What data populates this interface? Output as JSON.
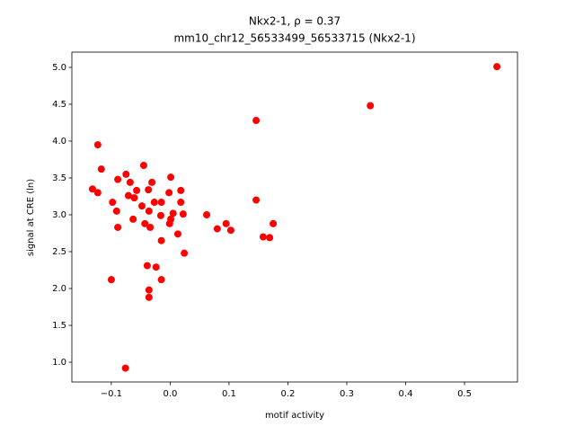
{
  "chart_data": {
    "type": "scatter",
    "title": "Nkx2-1, ρ = 0.37",
    "subtitle": "mm10_chr12_56533499_56533715 (Nkx2-1)",
    "x_label": "motif activity",
    "y_label": "signal at CRE (ln)",
    "color": "#ff0000",
    "x": [
      0.555,
      0.34,
      0.146,
      -0.123,
      -0.117,
      -0.045,
      -0.132,
      -0.123,
      -0.089,
      -0.075,
      -0.068,
      -0.031,
      0.001,
      -0.057,
      -0.037,
      -0.071,
      -0.061,
      -0.098,
      -0.027,
      -0.015,
      0.018,
      0.018,
      -0.002,
      -0.048,
      -0.091,
      -0.036,
      -0.016,
      0.005,
      0.022,
      0.062,
      -0.063,
      0.001,
      -0.001,
      -0.043,
      -0.089,
      -0.034,
      0.095,
      0.08,
      0.103,
      0.146,
      0.175,
      0.158,
      0.169,
      0.013,
      -0.015,
      0.024,
      -0.039,
      -0.024,
      -0.1,
      -0.015,
      -0.036,
      -0.036,
      -0.076
    ],
    "values": [
      5.01,
      4.48,
      4.28,
      3.95,
      3.62,
      3.67,
      3.35,
      3.3,
      3.48,
      3.55,
      3.44,
      3.44,
      3.51,
      3.33,
      3.34,
      3.26,
      3.23,
      3.17,
      3.17,
      3.17,
      3.17,
      3.33,
      3.3,
      3.12,
      3.05,
      3.05,
      2.99,
      3.02,
      3.01,
      3.0,
      2.94,
      2.94,
      2.88,
      2.88,
      2.83,
      2.83,
      2.88,
      2.81,
      2.79,
      3.2,
      2.88,
      2.7,
      2.69,
      2.74,
      2.65,
      2.48,
      2.31,
      2.29,
      2.12,
      2.12,
      1.98,
      1.88,
      0.92
    ],
    "xlim": [
      -0.167,
      0.59
    ],
    "ylim": [
      0.732,
      5.207
    ],
    "xticks": [
      {
        "value": -0.1,
        "label": "−0.1"
      },
      {
        "value": 0,
        "label": "0.0"
      },
      0.1,
      0.2,
      0.3,
      0.4,
      0.5
    ],
    "yticks": [
      {
        "value": 1,
        "label": "1.0"
      },
      1.5,
      {
        "value": 2,
        "label": "2.0"
      },
      2.5,
      {
        "value": 3,
        "label": "3.0"
      },
      3.5,
      {
        "value": 4,
        "label": "4.0"
      },
      4.5,
      {
        "value": 5,
        "label": "5.0"
      }
    ]
  }
}
